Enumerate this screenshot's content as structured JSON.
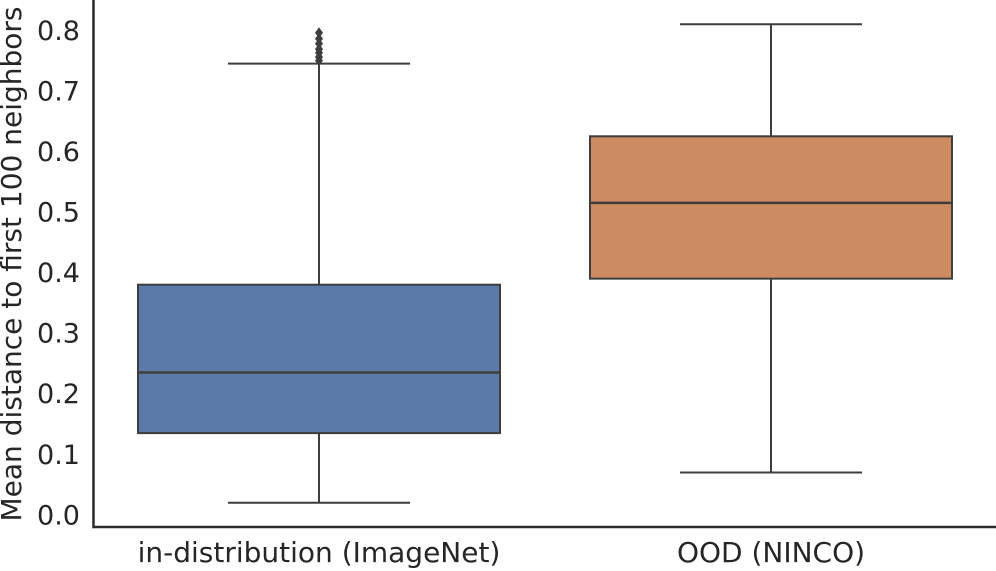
{
  "figure": {
    "background": "#ffffff"
  },
  "chart_data": {
    "type": "box",
    "orientation": "vertical",
    "title": "",
    "xlabel": "",
    "ylabel": "Mean distance to first 100 neighbors",
    "categories": [
      "in-distribution (ImageNet)",
      "OOD (NINCO)"
    ],
    "series": [
      {
        "name": "in-distribution (ImageNet)",
        "color": "#5B79A9",
        "whisker_low": 0.02,
        "q1": 0.135,
        "median": 0.235,
        "q3": 0.38,
        "whisker_high": 0.745,
        "outliers": [
          0.75,
          0.756,
          0.763,
          0.769,
          0.778,
          0.786,
          0.796
        ]
      },
      {
        "name": "OOD (NINCO)",
        "color": "#CD8B61",
        "whisker_low": 0.07,
        "q1": 0.39,
        "median": 0.515,
        "q3": 0.625,
        "whisker_high": 0.81,
        "outliers": []
      }
    ],
    "yticks": [
      0.0,
      0.1,
      0.2,
      0.3,
      0.4,
      0.5,
      0.6,
      0.7,
      0.8
    ],
    "ytick_labels": [
      "0.0",
      "0.1",
      "0.2",
      "0.3",
      "0.4",
      "0.5",
      "0.6",
      "0.7",
      "0.8"
    ],
    "ylim": [
      -0.02,
      0.85
    ],
    "grid": false,
    "legend": false,
    "line_color": "#3E3E3E",
    "spine_color": "#2B2B2B",
    "text_color": "#262626",
    "outlier_marker": "thin-diamond"
  }
}
